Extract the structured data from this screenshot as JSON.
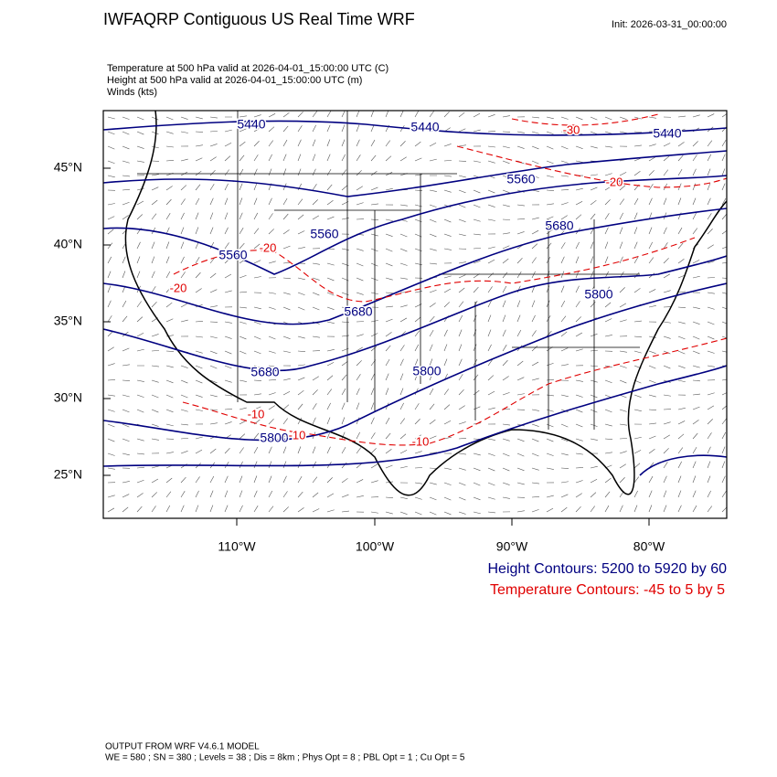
{
  "header": {
    "title": "IWFAQRP Contiguous US Real Time WRF",
    "init": "Init: 2026-03-31_00:00:00"
  },
  "fields": [
    "Temperature at 500 hPa valid at 2026-04-01_15:00:00 UTC   (C)",
    "Height at 500 hPa valid at 2026-04-01_15:00:00 UTC   (m)",
    "Winds   (kts)"
  ],
  "map": {
    "lat_labels": [
      "45°N",
      "40°N",
      "35°N",
      "30°N",
      "25°N"
    ],
    "lon_labels": [
      "110°W",
      "100°W",
      "90°W",
      "80°W"
    ],
    "height_labels": [
      "5440",
      "5440",
      "5440",
      "5560",
      "5560",
      "5560",
      "5680",
      "5680",
      "5680",
      "5800",
      "5800",
      "5800"
    ],
    "temperature_labels": [
      "-30",
      "-20",
      "-20",
      "-20",
      "-10",
      "-10",
      "-10"
    ]
  },
  "legend": {
    "height": "Height Contours: 5200 to 5920 by 60",
    "temperature": "Temperature Contours: -45 to 5 by 5"
  },
  "footer": [
    "OUTPUT FROM WRF V4.6.1 MODEL",
    "WE = 580 ; SN = 380 ; Levels = 38 ; Dis = 8km ; Phys Opt = 8 ; PBL Opt = 1 ; Cu Opt = 5"
  ]
}
